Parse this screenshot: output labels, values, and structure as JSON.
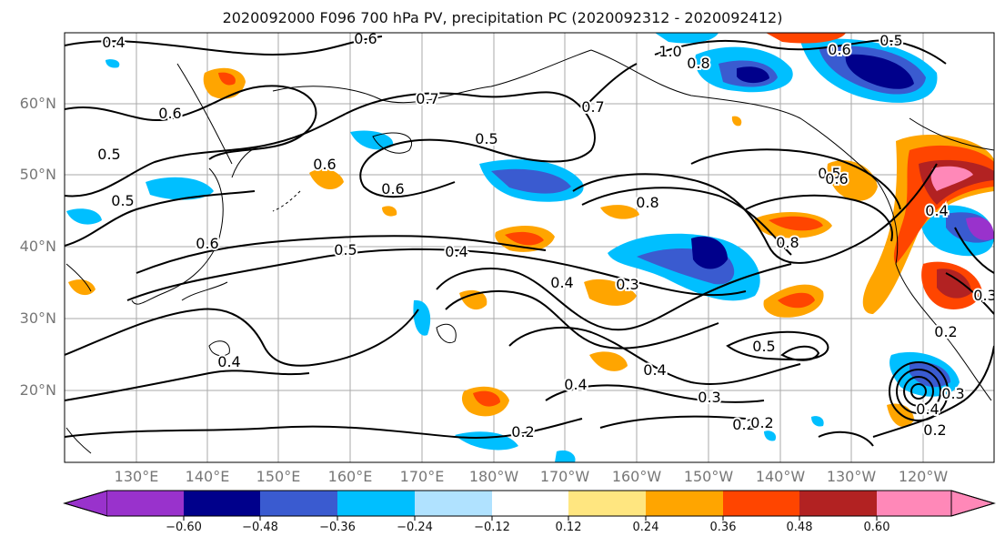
{
  "title": "2020092000 F096 700 hPa PV, precipitation PC (2020092312 - 2020092412)",
  "lat_labels": [
    "60°N",
    "50°N",
    "40°N",
    "30°N",
    "20°N"
  ],
  "lon_labels": [
    "130°E",
    "140°E",
    "150°E",
    "160°E",
    "170°E",
    "180°W",
    "170°W",
    "160°W",
    "150°W",
    "140°W",
    "130°W",
    "120°W"
  ],
  "contour_labels": [
    "0.4",
    "0.6",
    "0.6",
    "0.7",
    "0.5",
    "0.6",
    "0.5",
    "0.5",
    "0.6",
    "0.4",
    "0.7",
    "1.0",
    "0.8",
    "0.5",
    "0.6",
    "0.5",
    "0.4",
    "0.6",
    "0.4",
    "0.3",
    "0.8",
    "0.8",
    "0.5",
    "0.6",
    "0.4",
    "0.3",
    "0.2",
    "0.2",
    "0.5",
    "0.3",
    "0.2",
    "0.4",
    "0.3",
    "0.2",
    "0.4",
    "0.2",
    "0.4"
  ],
  "colorbar": {
    "ticks": [
      "−0.60",
      "−0.48",
      "−0.36",
      "−0.24",
      "−0.12",
      "0.12",
      "0.24",
      "0.36",
      "0.48",
      "0.60"
    ],
    "colors": [
      "#9932cc",
      "#00008b",
      "#3a5bd0",
      "#00bfff",
      "#b0e2ff",
      "#ffffff",
      "#ffe680",
      "#ffa500",
      "#ff4500",
      "#b22222",
      "#ff88b8"
    ]
  }
}
